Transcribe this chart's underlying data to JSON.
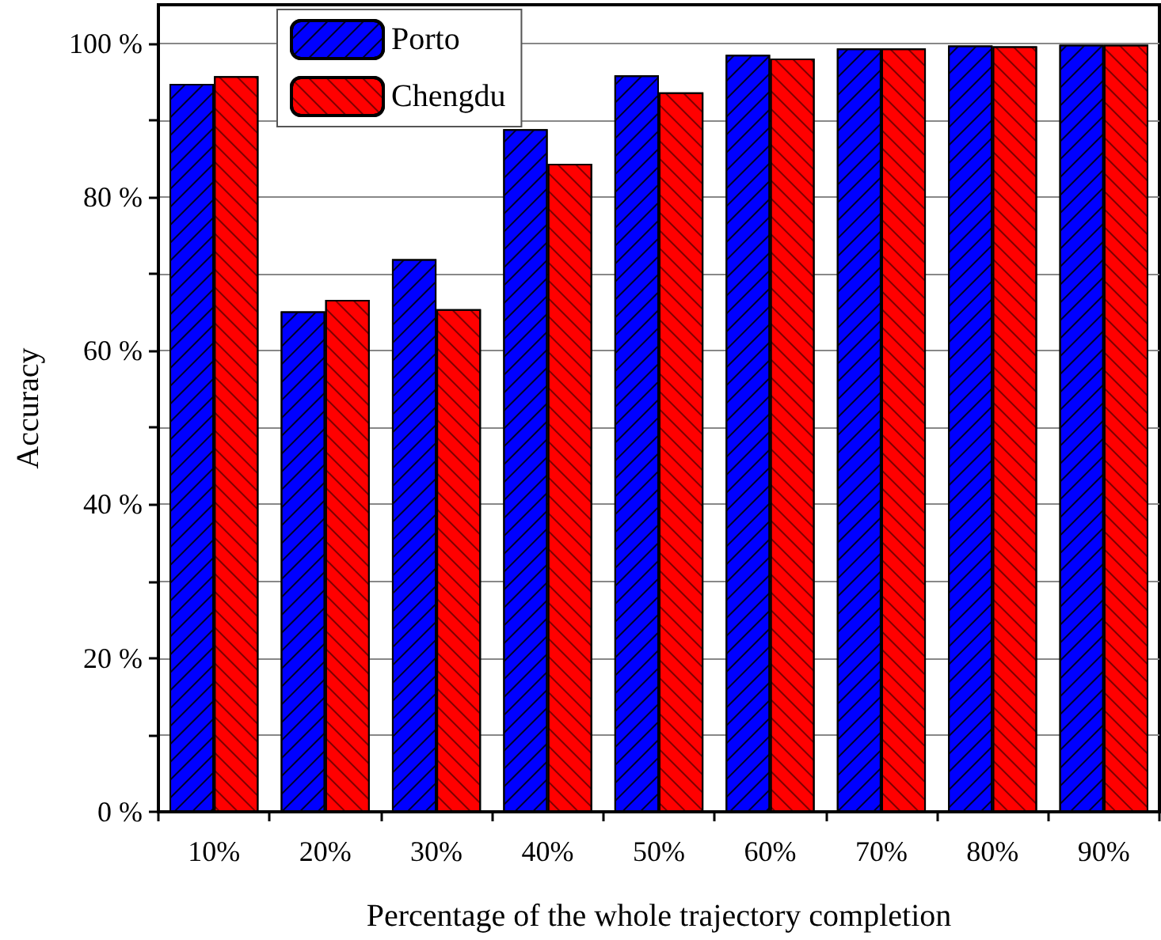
{
  "chart_data": {
    "type": "bar",
    "xlabel": "Percentage of the whole trajectory completion",
    "ylabel": "Accuracy",
    "categories": [
      "10%",
      "20%",
      "30%",
      "40%",
      "50%",
      "60%",
      "70%",
      "80%",
      "90%"
    ],
    "series": [
      {
        "name": "Porto",
        "color": "#0000ff",
        "values": [
          94.7,
          65.1,
          71.9,
          88.8,
          95.8,
          98.5,
          99.3,
          99.7,
          99.8
        ]
      },
      {
        "name": "Chengdu",
        "color": "#ff0000",
        "values": [
          95.7,
          66.6,
          65.4,
          84.3,
          93.6,
          98.0,
          99.3,
          99.6,
          99.8
        ]
      }
    ],
    "ylim": [
      0,
      105
    ],
    "yticks": [
      {
        "value": 0,
        "label": "0 %"
      },
      {
        "value": 10,
        "label": null
      },
      {
        "value": 20,
        "label": "20 %"
      },
      {
        "value": 30,
        "label": null
      },
      {
        "value": 40,
        "label": "40 %"
      },
      {
        "value": 50,
        "label": null
      },
      {
        "value": 60,
        "label": "60 %"
      },
      {
        "value": 70,
        "label": null
      },
      {
        "value": 80,
        "label": "80 %"
      },
      {
        "value": 90,
        "label": null
      },
      {
        "value": 100,
        "label": "100 %"
      }
    ],
    "grid": "y",
    "legend": "top left"
  }
}
